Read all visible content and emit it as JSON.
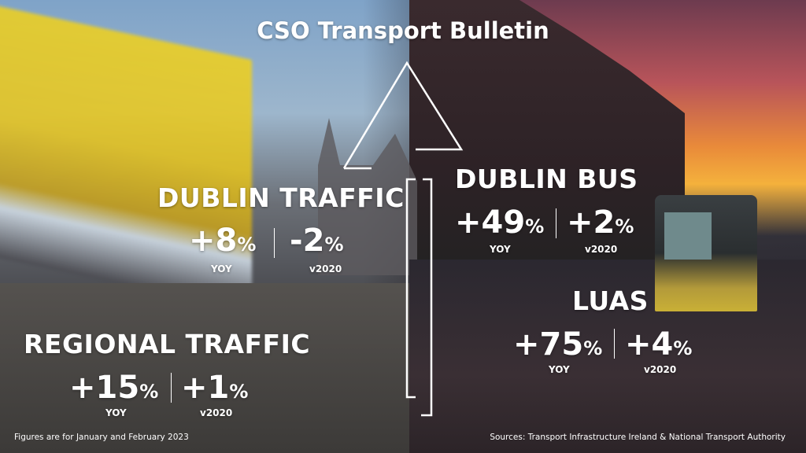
{
  "title": "CSO Transport Bulletin",
  "panels": [
    {
      "heading": "DUBLIN TRAFFIC",
      "metrics": [
        {
          "figure": "+8",
          "unit": "%",
          "label": "YOY"
        },
        {
          "figure": "-2",
          "unit": "%",
          "label": "v2020"
        }
      ]
    },
    {
      "heading": "DUBLIN BUS",
      "metrics": [
        {
          "figure": "+49",
          "unit": "%",
          "label": "YOY"
        },
        {
          "figure": "+2",
          "unit": "%",
          "label": "v2020"
        }
      ]
    },
    {
      "heading": "LUAS",
      "metrics": [
        {
          "figure": "+75",
          "unit": "%",
          "label": "YOY"
        },
        {
          "figure": "+4",
          "unit": "%",
          "label": "v2020"
        }
      ]
    },
    {
      "heading": "REGIONAL TRAFFIC",
      "metrics": [
        {
          "figure": "+15",
          "unit": "%",
          "label": "YOY"
        },
        {
          "figure": "+1",
          "unit": "%",
          "label": "v2020"
        }
      ]
    }
  ],
  "footnote": "Figures are for January and February 2023",
  "sources": "Sources: Transport Infrastructure Ireland & National Transport Authority"
}
